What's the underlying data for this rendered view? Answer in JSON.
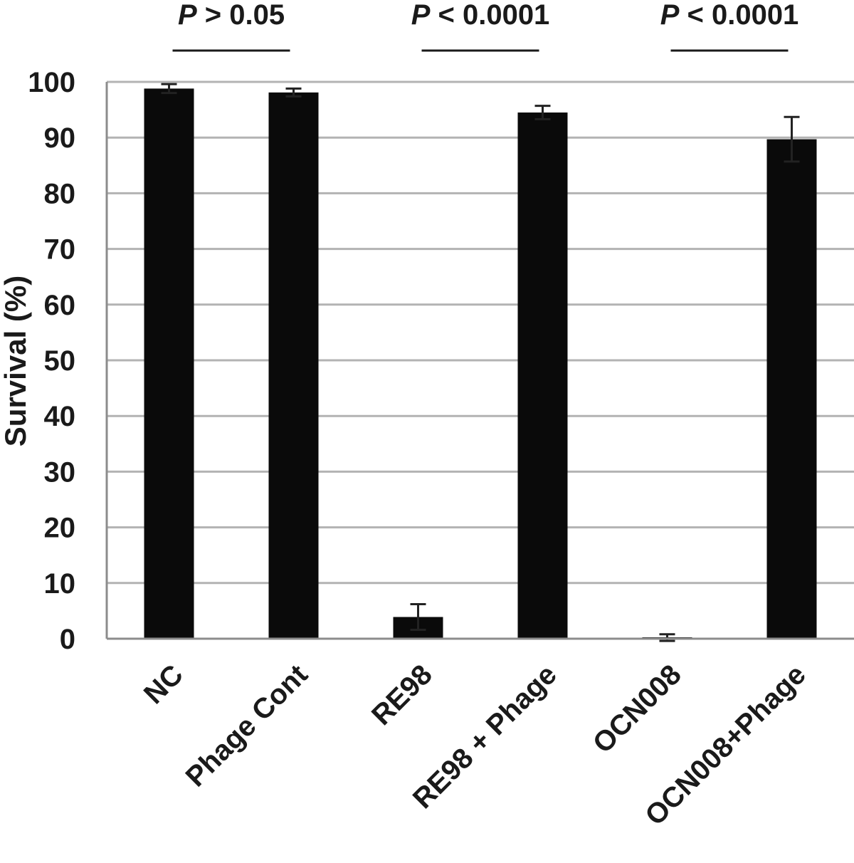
{
  "chart_data": {
    "type": "bar",
    "categories": [
      "NC",
      "Phage Cont",
      "RE98",
      "RE98 + Phage",
      "OCN008",
      "OCN008+Phage"
    ],
    "series": [
      {
        "values": [
          98.8,
          98.1,
          3.9,
          94.5,
          0.2,
          89.7
        ],
        "error": [
          0.8,
          0.7,
          2.3,
          1.2,
          0.6,
          4.0
        ]
      }
    ],
    "ylabel": "Survival (%)",
    "ylim": [
      0,
      100
    ],
    "yticks": [
      0,
      10,
      20,
      30,
      40,
      50,
      60,
      70,
      80,
      90,
      100
    ],
    "grid": true,
    "bar_color": "#0a0a0a",
    "grid_color": "#b3b3b3",
    "annotations": [
      {
        "prefix": "P",
        "text": " > 0.05",
        "groups": [
          0,
          1
        ]
      },
      {
        "prefix": "P",
        "text": " < 0.0001",
        "groups": [
          2,
          3
        ]
      },
      {
        "prefix": "P",
        "text": " < 0.0001",
        "groups": [
          4,
          5
        ]
      }
    ]
  }
}
